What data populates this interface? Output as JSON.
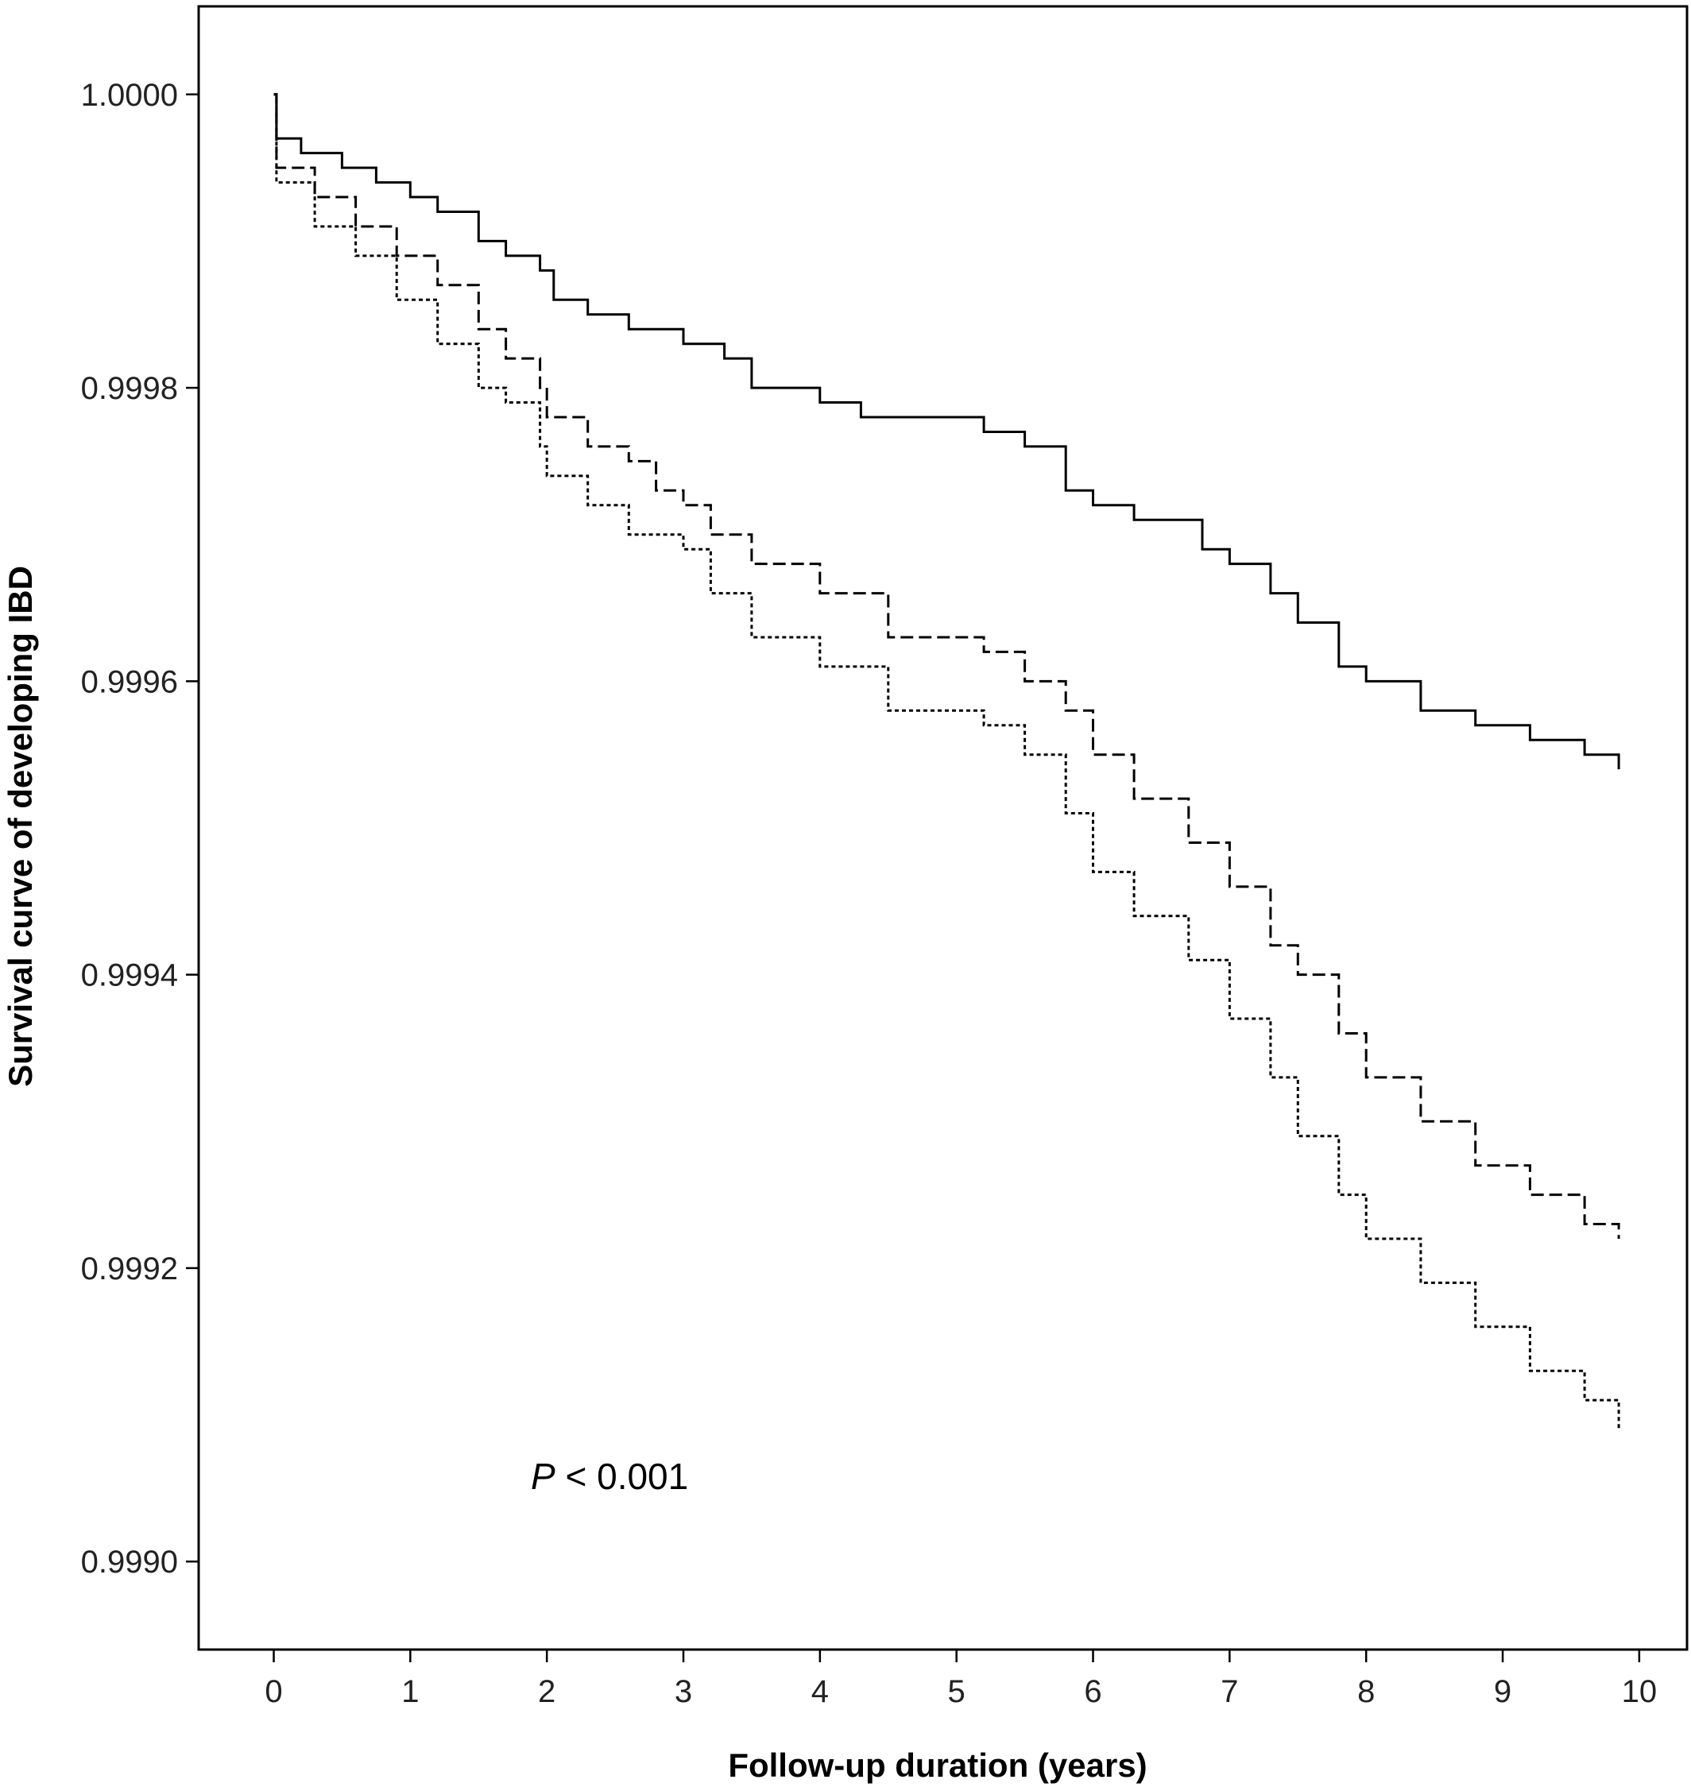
{
  "chart_data": {
    "type": "line",
    "title": "",
    "xlabel": "Follow-up duration (years)",
    "ylabel": "Survival curve of developing IBD",
    "xlim": [
      -0.55,
      10.35
    ],
    "ylim": [
      0.99894,
      1.00006
    ],
    "x_ticks": [
      0,
      1,
      2,
      3,
      4,
      5,
      6,
      7,
      8,
      9,
      10
    ],
    "x_tick_labels": [
      "0",
      "1",
      "2",
      "3",
      "4",
      "5",
      "6",
      "7",
      "8",
      "9",
      "10"
    ],
    "y_ticks": [
      0.999,
      0.9992,
      0.9994,
      0.9996,
      0.9998,
      1.0
    ],
    "y_tick_labels": [
      "0.9990",
      "0.9992",
      "0.9994",
      "0.9996",
      "0.9998",
      "1.0000"
    ],
    "grid": false,
    "annotation": {
      "italic": "P",
      "rest": " < 0.001"
    },
    "series": [
      {
        "style": "solid",
        "color": "#000000",
        "points": [
          [
            0,
            1.0
          ],
          [
            0.02,
            0.99997
          ],
          [
            0.2,
            0.99996
          ],
          [
            0.5,
            0.99995
          ],
          [
            0.75,
            0.99994
          ],
          [
            1.0,
            0.99993
          ],
          [
            1.2,
            0.99992
          ],
          [
            1.5,
            0.9999
          ],
          [
            1.7,
            0.99989
          ],
          [
            1.95,
            0.99988
          ],
          [
            2.05,
            0.99986
          ],
          [
            2.3,
            0.99985
          ],
          [
            2.6,
            0.99984
          ],
          [
            3.0,
            0.99983
          ],
          [
            3.3,
            0.99982
          ],
          [
            3.5,
            0.9998
          ],
          [
            4.0,
            0.99979
          ],
          [
            4.3,
            0.99978
          ],
          [
            4.8,
            0.99978
          ],
          [
            5.2,
            0.99977
          ],
          [
            5.5,
            0.99976
          ],
          [
            5.8,
            0.99973
          ],
          [
            6.0,
            0.99972
          ],
          [
            6.3,
            0.99971
          ],
          [
            6.8,
            0.99969
          ],
          [
            7.0,
            0.99968
          ],
          [
            7.3,
            0.99966
          ],
          [
            7.5,
            0.99964
          ],
          [
            7.8,
            0.99961
          ],
          [
            8.0,
            0.9996
          ],
          [
            8.4,
            0.99958
          ],
          [
            8.8,
            0.99957
          ],
          [
            9.2,
            0.99956
          ],
          [
            9.6,
            0.99955
          ],
          [
            9.85,
            0.99954
          ]
        ]
      },
      {
        "style": "dashed",
        "color": "#000000",
        "points": [
          [
            0,
            1.0
          ],
          [
            0.02,
            0.99995
          ],
          [
            0.3,
            0.99993
          ],
          [
            0.6,
            0.99991
          ],
          [
            0.9,
            0.99989
          ],
          [
            1.2,
            0.99987
          ],
          [
            1.5,
            0.99984
          ],
          [
            1.7,
            0.99982
          ],
          [
            1.95,
            0.9998
          ],
          [
            2.0,
            0.99978
          ],
          [
            2.3,
            0.99976
          ],
          [
            2.6,
            0.99975
          ],
          [
            2.8,
            0.99973
          ],
          [
            3.0,
            0.99972
          ],
          [
            3.2,
            0.9997
          ],
          [
            3.5,
            0.99968
          ],
          [
            4.0,
            0.99966
          ],
          [
            4.5,
            0.99963
          ],
          [
            5.2,
            0.99962
          ],
          [
            5.5,
            0.9996
          ],
          [
            5.8,
            0.99958
          ],
          [
            6.0,
            0.99955
          ],
          [
            6.3,
            0.99952
          ],
          [
            6.7,
            0.99949
          ],
          [
            7.0,
            0.99946
          ],
          [
            7.3,
            0.99942
          ],
          [
            7.5,
            0.9994
          ],
          [
            7.8,
            0.99936
          ],
          [
            8.0,
            0.99933
          ],
          [
            8.4,
            0.9993
          ],
          [
            8.8,
            0.99927
          ],
          [
            9.2,
            0.99925
          ],
          [
            9.6,
            0.99923
          ],
          [
            9.85,
            0.99922
          ]
        ]
      },
      {
        "style": "dotted",
        "color": "#000000",
        "points": [
          [
            0,
            1.0
          ],
          [
            0.02,
            0.99994
          ],
          [
            0.3,
            0.99991
          ],
          [
            0.6,
            0.99989
          ],
          [
            0.9,
            0.99986
          ],
          [
            1.2,
            0.99983
          ],
          [
            1.5,
            0.9998
          ],
          [
            1.7,
            0.99979
          ],
          [
            1.95,
            0.99976
          ],
          [
            2.0,
            0.99974
          ],
          [
            2.3,
            0.99972
          ],
          [
            2.6,
            0.9997
          ],
          [
            3.0,
            0.99969
          ],
          [
            3.2,
            0.99966
          ],
          [
            3.5,
            0.99963
          ],
          [
            4.0,
            0.99961
          ],
          [
            4.5,
            0.99958
          ],
          [
            5.2,
            0.99957
          ],
          [
            5.5,
            0.99955
          ],
          [
            5.8,
            0.99951
          ],
          [
            6.0,
            0.99947
          ],
          [
            6.3,
            0.99944
          ],
          [
            6.7,
            0.99941
          ],
          [
            7.0,
            0.99937
          ],
          [
            7.3,
            0.99933
          ],
          [
            7.5,
            0.99929
          ],
          [
            7.8,
            0.99925
          ],
          [
            8.0,
            0.99922
          ],
          [
            8.4,
            0.99919
          ],
          [
            8.8,
            0.99916
          ],
          [
            9.2,
            0.99913
          ],
          [
            9.6,
            0.99911
          ],
          [
            9.85,
            0.99909
          ]
        ]
      }
    ]
  }
}
